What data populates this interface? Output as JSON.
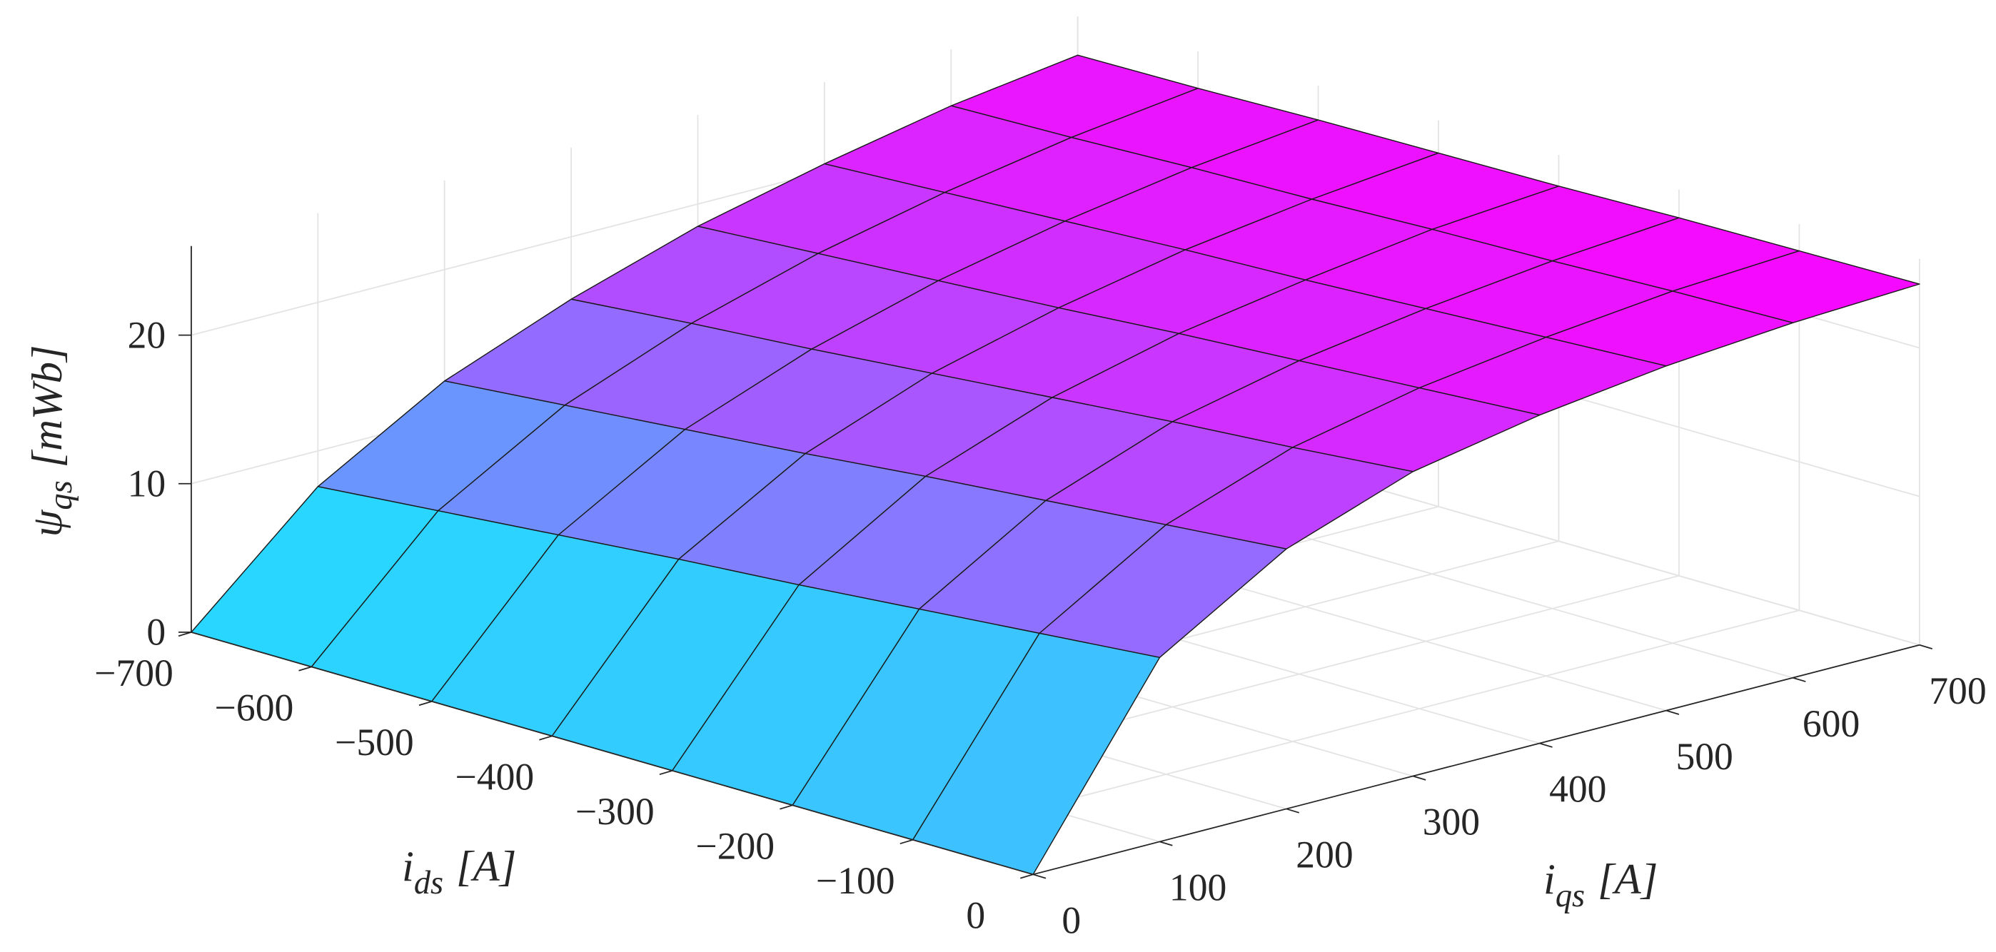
{
  "chart_data": {
    "type": "surface",
    "colormap": "cool",
    "edgecolor": "#1a1a1a",
    "grid": true,
    "xlabel": {
      "symbol": "i",
      "subscript": "ds",
      "unit": "[A]"
    },
    "ylabel": {
      "symbol": "i",
      "subscript": "qs",
      "unit": "[A]"
    },
    "zlabel": {
      "symbol": "ψ",
      "subscript": "qs",
      "unit": "[mWb]"
    },
    "x": [
      -700,
      -600,
      -500,
      -400,
      -300,
      -200,
      -100,
      0
    ],
    "y": [
      0,
      100,
      200,
      300,
      400,
      500,
      600,
      700
    ],
    "z": [
      [
        0,
        7.6,
        12.5,
        15.8,
        18.5,
        20.5,
        22.2,
        23.4
      ],
      [
        0,
        8.3,
        13.2,
        16.5,
        19.0,
        20.9,
        22.4,
        23.5
      ],
      [
        0,
        9.0,
        13.9,
        17.1,
        19.5,
        21.3,
        22.7,
        23.7
      ],
      [
        0,
        9.7,
        14.6,
        17.8,
        20.0,
        21.7,
        22.9,
        23.8
      ],
      [
        0,
        10.3,
        15.4,
        18.5,
        20.6,
        22.0,
        23.2,
        23.9
      ],
      [
        0,
        11.0,
        16.1,
        19.2,
        21.1,
        22.4,
        23.4,
        24.1
      ],
      [
        0,
        11.7,
        16.8,
        19.8,
        21.6,
        22.8,
        23.7,
        24.2
      ],
      [
        0,
        12.4,
        17.5,
        20.5,
        22.1,
        23.2,
        23.9,
        24.3
      ]
    ],
    "xlim": [
      -700,
      0
    ],
    "ylim": [
      0,
      700
    ],
    "zlim": [
      0,
      26
    ],
    "clim": [
      0,
      25
    ],
    "xticks": [
      {
        "value": -700,
        "label": "−700"
      },
      {
        "value": -600,
        "label": "−600"
      },
      {
        "value": -500,
        "label": "−500"
      },
      {
        "value": -400,
        "label": "−400"
      },
      {
        "value": -300,
        "label": "−300"
      },
      {
        "value": -200,
        "label": "−200"
      },
      {
        "value": -100,
        "label": "−100"
      },
      0
    ],
    "yticks": [
      0,
      100,
      200,
      300,
      400,
      500,
      600,
      700
    ],
    "zticks": [
      0,
      10,
      20
    ]
  }
}
